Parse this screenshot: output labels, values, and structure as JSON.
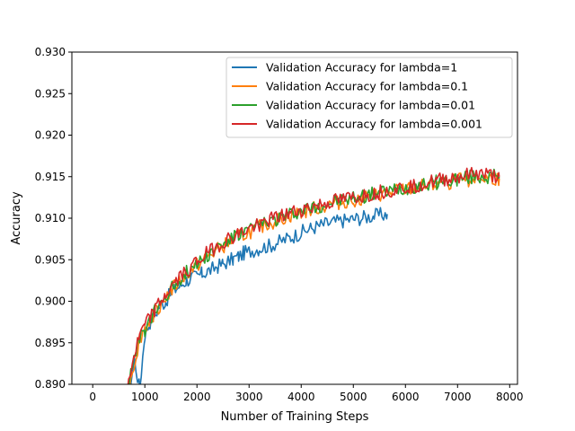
{
  "chart_data": {
    "type": "line",
    "title": "",
    "xlabel": "Number of Training Steps",
    "ylabel": "Accuracy",
    "xlim": [
      -400,
      8150
    ],
    "ylim": [
      0.89,
      0.93
    ],
    "xticks": [
      0,
      1000,
      2000,
      3000,
      4000,
      5000,
      6000,
      7000,
      8000
    ],
    "xtick_labels": [
      "0",
      "1000",
      "2000",
      "3000",
      "4000",
      "5000",
      "6000",
      "7000",
      "8000"
    ],
    "yticks": [
      0.89,
      0.895,
      0.9,
      0.905,
      0.91,
      0.915,
      0.92,
      0.925,
      0.93
    ],
    "ytick_labels": [
      "0.890",
      "0.895",
      "0.900",
      "0.905",
      "0.910",
      "0.915",
      "0.920",
      "0.925",
      "0.930"
    ],
    "grid": false,
    "legend_position": "upper right",
    "series": [
      {
        "name": "Validation Accuracy for lambda=1",
        "color": "#1f77b4",
        "points": [
          [
            600,
            0.886
          ],
          [
            700,
            0.8895
          ],
          [
            800,
            0.893
          ],
          [
            900,
            0.8895
          ],
          [
            1000,
            0.896
          ],
          [
            1100,
            0.8975
          ],
          [
            1200,
            0.8985
          ],
          [
            1300,
            0.8995
          ],
          [
            1400,
            0.9
          ],
          [
            1500,
            0.901
          ],
          [
            1600,
            0.9015
          ],
          [
            1700,
            0.902
          ],
          [
            1800,
            0.9025
          ],
          [
            1900,
            0.9028
          ],
          [
            2000,
            0.903
          ],
          [
            2100,
            0.9033
          ],
          [
            2200,
            0.9036
          ],
          [
            2300,
            0.9039
          ],
          [
            2400,
            0.9042
          ],
          [
            2500,
            0.9045
          ],
          [
            2600,
            0.9048
          ],
          [
            2700,
            0.9051
          ],
          [
            2800,
            0.9054
          ],
          [
            2900,
            0.9058
          ],
          [
            3000,
            0.906
          ],
          [
            3200,
            0.9064
          ],
          [
            3400,
            0.9067
          ],
          [
            3600,
            0.9072
          ],
          [
            3800,
            0.9077
          ],
          [
            4000,
            0.9083
          ],
          [
            4200,
            0.9088
          ],
          [
            4400,
            0.9092
          ],
          [
            4600,
            0.9095
          ],
          [
            4800,
            0.9097
          ],
          [
            5000,
            0.9099
          ],
          [
            5200,
            0.9101
          ],
          [
            5400,
            0.9103
          ],
          [
            5650,
            0.9105
          ]
        ]
      },
      {
        "name": "Validation Accuracy for lambda=0.1",
        "color": "#ff7f0e",
        "points": [
          [
            600,
            0.886
          ],
          [
            700,
            0.89
          ],
          [
            800,
            0.8925
          ],
          [
            900,
            0.8955
          ],
          [
            1000,
            0.8968
          ],
          [
            1100,
            0.8978
          ],
          [
            1200,
            0.8988
          ],
          [
            1400,
            0.9005
          ],
          [
            1600,
            0.902
          ],
          [
            1800,
            0.9033
          ],
          [
            2000,
            0.9043
          ],
          [
            2200,
            0.9053
          ],
          [
            2400,
            0.9062
          ],
          [
            2600,
            0.907
          ],
          [
            2800,
            0.9077
          ],
          [
            3000,
            0.9083
          ],
          [
            3200,
            0.9089
          ],
          [
            3400,
            0.9094
          ],
          [
            3600,
            0.9099
          ],
          [
            3800,
            0.9103
          ],
          [
            4000,
            0.9107
          ],
          [
            4300,
            0.9112
          ],
          [
            4600,
            0.9117
          ],
          [
            5000,
            0.9122
          ],
          [
            5400,
            0.9127
          ],
          [
            5800,
            0.9132
          ],
          [
            6200,
            0.9137
          ],
          [
            6600,
            0.9141
          ],
          [
            7000,
            0.9145
          ],
          [
            7400,
            0.9148
          ],
          [
            7800,
            0.9148
          ]
        ]
      },
      {
        "name": "Validation Accuracy for lambda=0.01",
        "color": "#2ca02c",
        "points": [
          [
            600,
            0.887
          ],
          [
            700,
            0.8905
          ],
          [
            800,
            0.893
          ],
          [
            900,
            0.8955
          ],
          [
            1000,
            0.8965
          ],
          [
            1100,
            0.8975
          ],
          [
            1200,
            0.8988
          ],
          [
            1400,
            0.9007
          ],
          [
            1600,
            0.9022
          ],
          [
            1800,
            0.9035
          ],
          [
            2000,
            0.9046
          ],
          [
            2200,
            0.9056
          ],
          [
            2400,
            0.9065
          ],
          [
            2600,
            0.9073
          ],
          [
            2800,
            0.908
          ],
          [
            3000,
            0.9086
          ],
          [
            3200,
            0.9092
          ],
          [
            3400,
            0.9097
          ],
          [
            3600,
            0.9101
          ],
          [
            3800,
            0.9105
          ],
          [
            4000,
            0.9109
          ],
          [
            4300,
            0.9114
          ],
          [
            4600,
            0.9119
          ],
          [
            5000,
            0.9124
          ],
          [
            5400,
            0.9129
          ],
          [
            5800,
            0.9134
          ],
          [
            6200,
            0.9139
          ],
          [
            6600,
            0.9143
          ],
          [
            7000,
            0.9147
          ],
          [
            7400,
            0.915
          ],
          [
            7800,
            0.915
          ]
        ]
      },
      {
        "name": "Validation Accuracy for lambda=0.001",
        "color": "#d62728",
        "points": [
          [
            600,
            0.886
          ],
          [
            700,
            0.891
          ],
          [
            800,
            0.8935
          ],
          [
            900,
            0.8958
          ],
          [
            1000,
            0.897
          ],
          [
            1100,
            0.898
          ],
          [
            1200,
            0.899
          ],
          [
            1400,
            0.9008
          ],
          [
            1600,
            0.9024
          ],
          [
            1800,
            0.9037
          ],
          [
            2000,
            0.9048
          ],
          [
            2200,
            0.9058
          ],
          [
            2400,
            0.9067
          ],
          [
            2600,
            0.9075
          ],
          [
            2800,
            0.9081
          ],
          [
            3000,
            0.9087
          ],
          [
            3200,
            0.9093
          ],
          [
            3400,
            0.9098
          ],
          [
            3600,
            0.9102
          ],
          [
            3800,
            0.9106
          ],
          [
            4000,
            0.911
          ],
          [
            4300,
            0.9115
          ],
          [
            4600,
            0.912
          ],
          [
            5000,
            0.9125
          ],
          [
            5400,
            0.913
          ],
          [
            5800,
            0.9135
          ],
          [
            6200,
            0.914
          ],
          [
            6600,
            0.9145
          ],
          [
            7000,
            0.915
          ],
          [
            7400,
            0.9154
          ],
          [
            7800,
            0.915
          ]
        ]
      }
    ]
  }
}
